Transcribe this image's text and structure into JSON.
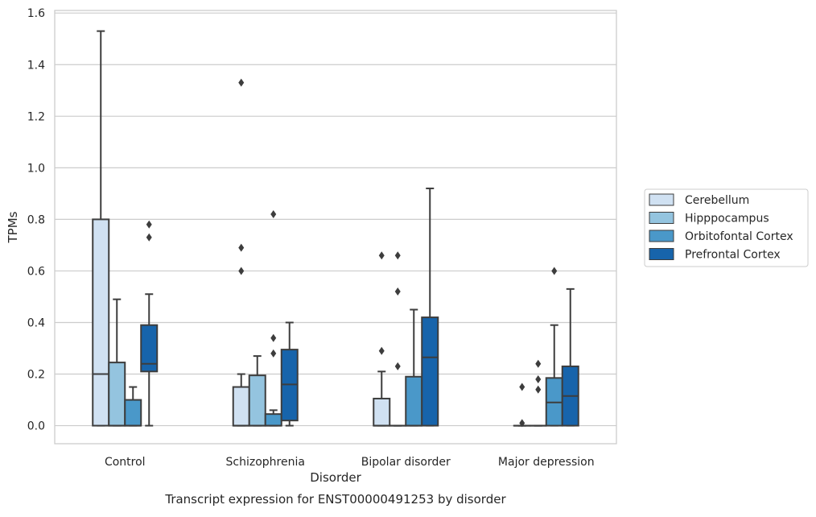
{
  "chart_data": {
    "type": "boxplot",
    "title": "Transcript expression for ENST00000491253 by disorder",
    "xlabel": "Disorder",
    "ylabel": "TPMs",
    "ylim": [
      -0.07,
      1.61
    ],
    "yticks": [
      0.0,
      0.2,
      0.4,
      0.6,
      0.8,
      1.0,
      1.2,
      1.4,
      1.6
    ],
    "ytick_labels": [
      "0.0",
      "0.2",
      "0.4",
      "0.6",
      "0.8",
      "1.0",
      "1.2",
      "1.4",
      "1.6"
    ],
    "grid": true,
    "legend_position": "right",
    "categories": [
      "Control",
      "Schizophrenia",
      "Bipolar disorder",
      "Major depression"
    ],
    "series": [
      {
        "name": "Cerebellum",
        "color": "#d0e1f2",
        "boxes": [
          {
            "whislo": 0.0,
            "q1": 0.0,
            "med": 0.2,
            "q3": 0.8,
            "whishi": 1.53,
            "fliers": []
          },
          {
            "whislo": 0.0,
            "q1": 0.0,
            "med": 0.0,
            "q3": 0.15,
            "whishi": 0.2,
            "fliers": [
              0.6,
              0.69,
              1.33
            ]
          },
          {
            "whislo": 0.0,
            "q1": 0.0,
            "med": 0.0,
            "q3": 0.105,
            "whishi": 0.21,
            "fliers": [
              0.29,
              0.66
            ]
          },
          {
            "whislo": 0.0,
            "q1": 0.0,
            "med": 0.0,
            "q3": 0.0,
            "whishi": 0.0,
            "fliers": [
              0.01,
              0.15
            ]
          }
        ]
      },
      {
        "name": "Hipppocampus",
        "color": "#94c4df",
        "boxes": [
          {
            "whislo": 0.0,
            "q1": 0.0,
            "med": 0.0,
            "q3": 0.245,
            "whishi": 0.49,
            "fliers": []
          },
          {
            "whislo": 0.0,
            "q1": 0.0,
            "med": 0.0,
            "q3": 0.195,
            "whishi": 0.27,
            "fliers": []
          },
          {
            "whislo": 0.0,
            "q1": 0.0,
            "med": 0.0,
            "q3": 0.0,
            "whishi": 0.0,
            "fliers": [
              0.23,
              0.52,
              0.66
            ]
          },
          {
            "whislo": 0.0,
            "q1": 0.0,
            "med": 0.0,
            "q3": 0.0,
            "whishi": 0.0,
            "fliers": [
              0.14,
              0.18,
              0.24
            ]
          }
        ]
      },
      {
        "name": "Orbitofontal Cortex",
        "color": "#4a98c9",
        "boxes": [
          {
            "whislo": 0.0,
            "q1": 0.0,
            "med": 0.0,
            "q3": 0.1,
            "whishi": 0.15,
            "fliers": []
          },
          {
            "whislo": 0.0,
            "q1": 0.0,
            "med": 0.0,
            "q3": 0.045,
            "whishi": 0.06,
            "fliers": [
              0.28,
              0.34,
              0.82
            ]
          },
          {
            "whislo": 0.0,
            "q1": 0.0,
            "med": 0.0,
            "q3": 0.19,
            "whishi": 0.45,
            "fliers": []
          },
          {
            "whislo": 0.0,
            "q1": 0.0,
            "med": 0.09,
            "q3": 0.185,
            "whishi": 0.39,
            "fliers": [
              0.6
            ]
          }
        ]
      },
      {
        "name": "Prefrontal Cortex",
        "color": "#1764ab",
        "boxes": [
          {
            "whislo": 0.0,
            "q1": 0.21,
            "med": 0.24,
            "q3": 0.39,
            "whishi": 0.51,
            "fliers": [
              0.73,
              0.78
            ]
          },
          {
            "whislo": 0.0,
            "q1": 0.02,
            "med": 0.16,
            "q3": 0.295,
            "whishi": 0.4,
            "fliers": []
          },
          {
            "whislo": 0.0,
            "q1": 0.0,
            "med": 0.265,
            "q3": 0.42,
            "whishi": 0.92,
            "fliers": []
          },
          {
            "whislo": 0.0,
            "q1": 0.0,
            "med": 0.115,
            "q3": 0.23,
            "whishi": 0.53,
            "fliers": []
          }
        ]
      }
    ]
  }
}
